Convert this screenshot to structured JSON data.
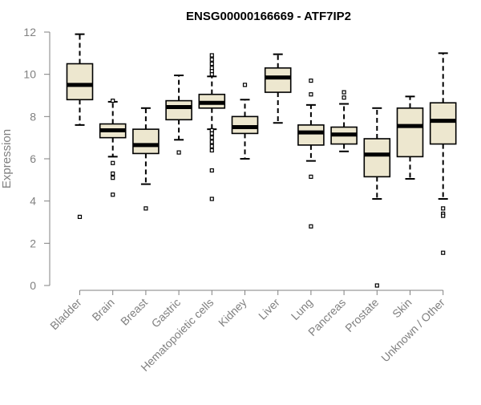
{
  "chart_data": {
    "type": "box",
    "title": "ENSG00000166669 - ATF7IP2",
    "xlabel": "",
    "ylabel": "Expression",
    "ylim": [
      0,
      12
    ],
    "yticks": [
      "0",
      "2",
      "4",
      "6",
      "8",
      "10",
      "12"
    ],
    "grid": false,
    "colors": {
      "box_fill": "#ede7cf",
      "stroke": "#000000",
      "axis_text": "#808080"
    },
    "categories": [
      "Bladder",
      "Brain",
      "Breast",
      "Gastric",
      "Hematopoietic cells",
      "Kidney",
      "Liver",
      "Lung",
      "Pancreas",
      "Prostate",
      "Skin",
      "Unknown / Other"
    ],
    "boxes": [
      {
        "label": "Bladder",
        "whisker_low": 7.6,
        "q1": 8.8,
        "median": 9.5,
        "q3": 10.5,
        "whisker_high": 11.9,
        "outliers": [
          3.25
        ]
      },
      {
        "label": "Brain",
        "whisker_low": 6.1,
        "q1": 7.0,
        "median": 7.35,
        "q3": 7.65,
        "whisker_high": 8.7,
        "outliers": [
          8.75,
          5.8,
          5.3,
          5.1,
          4.3
        ]
      },
      {
        "label": "Breast",
        "whisker_low": 4.8,
        "q1": 6.25,
        "median": 6.65,
        "q3": 7.4,
        "whisker_high": 8.4,
        "outliers": [
          3.65
        ]
      },
      {
        "label": "Gastric",
        "whisker_low": 6.9,
        "q1": 7.85,
        "median": 8.45,
        "q3": 8.75,
        "whisker_high": 9.95,
        "outliers": [
          6.3
        ]
      },
      {
        "label": "Hematopoietic cells",
        "whisker_low": 7.4,
        "q1": 8.4,
        "median": 8.65,
        "q3": 9.05,
        "whisker_high": 9.9,
        "outliers": [
          10.9,
          10.7,
          10.5,
          10.3,
          10.15,
          10.0,
          7.35,
          7.2,
          7.0,
          6.8,
          6.6,
          6.4,
          5.45,
          4.1
        ]
      },
      {
        "label": "Kidney",
        "whisker_low": 6.0,
        "q1": 7.2,
        "median": 7.5,
        "q3": 8.0,
        "whisker_high": 8.8,
        "outliers": [
          9.5
        ]
      },
      {
        "label": "Liver",
        "whisker_low": 7.7,
        "q1": 9.15,
        "median": 9.85,
        "q3": 10.3,
        "whisker_high": 10.95,
        "outliers": []
      },
      {
        "label": "Lung",
        "whisker_low": 5.9,
        "q1": 6.65,
        "median": 7.25,
        "q3": 7.6,
        "whisker_high": 8.55,
        "outliers": [
          9.7,
          9.05,
          5.15,
          2.8
        ]
      },
      {
        "label": "Pancreas",
        "whisker_low": 6.35,
        "q1": 6.7,
        "median": 7.15,
        "q3": 7.5,
        "whisker_high": 8.6,
        "outliers": [
          9.15,
          8.9
        ]
      },
      {
        "label": "Prostate",
        "whisker_low": 4.1,
        "q1": 5.15,
        "median": 6.2,
        "q3": 6.95,
        "whisker_high": 8.4,
        "outliers": [
          0.0
        ]
      },
      {
        "label": "Skin",
        "whisker_low": 5.05,
        "q1": 6.1,
        "median": 7.55,
        "q3": 8.4,
        "whisker_high": 8.95,
        "outliers": []
      },
      {
        "label": "Unknown / Other",
        "whisker_low": 4.1,
        "q1": 6.7,
        "median": 7.8,
        "q3": 8.65,
        "whisker_high": 11.0,
        "outliers": [
          3.65,
          3.4,
          3.3,
          1.55
        ]
      }
    ]
  }
}
